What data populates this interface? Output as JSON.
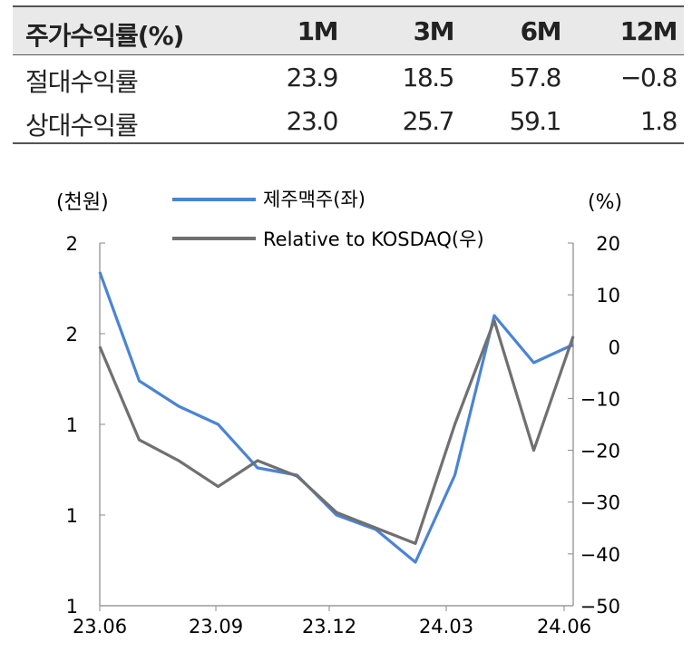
{
  "table": {
    "header": {
      "label": "주가수익률(%)",
      "cols": [
        "1M",
        "3M",
        "6M",
        "12M"
      ]
    },
    "rows": [
      {
        "label": "절대수익률",
        "values": [
          "23.9",
          "18.5",
          "57.8",
          "−0.8"
        ]
      },
      {
        "label": "상대수익률",
        "values": [
          "23.0",
          "25.7",
          "59.1",
          "1.8"
        ]
      }
    ]
  },
  "chart_data": {
    "type": "line",
    "left_unit": "(천원)",
    "right_unit": "(%)",
    "x_ticks": [
      "23.06",
      "23.09",
      "23.12",
      "24.03",
      "24.06"
    ],
    "left_tick_labels": [
      "2",
      "2",
      "1",
      "1",
      "1"
    ],
    "left_ylim": [
      1.0,
      2.0
    ],
    "right_ticks": [
      20,
      10,
      0,
      -10,
      -20,
      -30,
      -40,
      -50
    ],
    "right_ylim": [
      -50,
      20
    ],
    "series": [
      {
        "name": "제주맥주(좌)",
        "axis": "left",
        "color": "#4a84d4",
        "x": [
          "23.06",
          "23.07",
          "23.08",
          "23.09",
          "23.10",
          "23.11",
          "23.12",
          "24.01",
          "24.02",
          "24.03",
          "24.04",
          "24.05",
          "24.06"
        ],
        "values": [
          1.92,
          1.62,
          1.55,
          1.5,
          1.38,
          1.36,
          1.25,
          1.21,
          1.12,
          1.36,
          1.8,
          1.67,
          1.72
        ]
      },
      {
        "name": "Relative to KOSDAQ(우)",
        "axis": "right",
        "color": "#707070",
        "x": [
          "23.06",
          "23.07",
          "23.08",
          "23.09",
          "23.10",
          "23.11",
          "23.12",
          "24.01",
          "24.02",
          "24.03",
          "24.04",
          "24.05",
          "24.06"
        ],
        "values": [
          0,
          -18,
          -22,
          -27,
          -22,
          -25,
          -32,
          -35,
          -38,
          -15,
          5,
          -20,
          2
        ]
      }
    ]
  }
}
